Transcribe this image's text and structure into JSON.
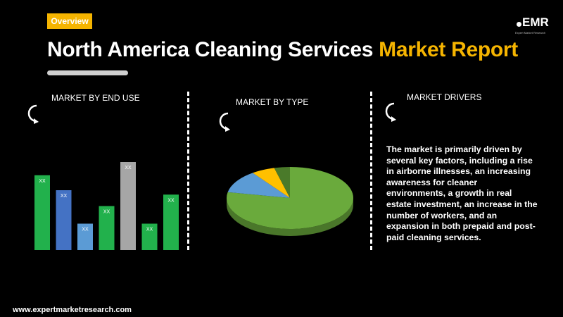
{
  "header": {
    "badge": "Overview",
    "title_main": "North America Cleaning Services ",
    "title_accent": "Market Report"
  },
  "logo": {
    "text": "EMR",
    "tagline": "Expert Market Research"
  },
  "sections": {
    "end_use": {
      "title": "MARKET BY END USE"
    },
    "type": {
      "title": "MARKET BY TYPE"
    },
    "drivers": {
      "title": "MARKET DRIVERS",
      "text": "The market is primarily driven by several key factors, including a rise in airborne illnesses, an increasing awareness for cleaner environments, a growth in real estate investment, an increase in the number of workers, and an expansion in both prepaid and post-paid cleaning services."
    }
  },
  "footer": {
    "url": "www.expertmarketresearch.com"
  },
  "chart_data": [
    {
      "type": "bar",
      "title": "MARKET BY END USE",
      "categories": [
        "",
        "",
        "",
        "",
        "",
        "",
        ""
      ],
      "values": [
        0.85,
        0.68,
        0.3,
        0.5,
        1.0,
        0.3,
        0.63
      ],
      "data_labels": [
        "XX",
        "XX",
        "XX",
        "XX",
        "XX",
        "XX",
        "XX"
      ],
      "colors": [
        "#22b14c",
        "#4472c4",
        "#5b9bd5",
        "#22b14c",
        "#a6a6a6",
        "#22b14c",
        "#22b14c"
      ]
    },
    {
      "type": "pie",
      "title": "MARKET BY TYPE",
      "values": [
        0.78,
        0.12,
        0.06,
        0.04
      ],
      "colors": [
        "#6aaa3c",
        "#5b9bd5",
        "#ffc000",
        "#4a7a2a"
      ]
    }
  ]
}
